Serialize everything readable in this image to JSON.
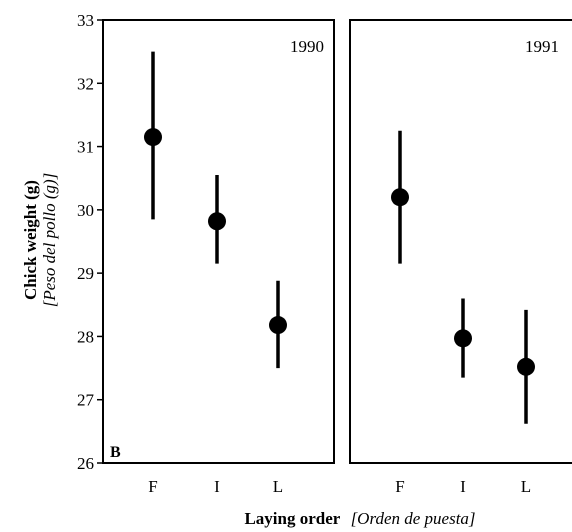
{
  "chart_data": {
    "type": "scatter",
    "panel_letter": "B",
    "ylabel": "Chick weight (g)",
    "ylabel_translation": "[Peso del pollo (g)]",
    "xlabel": "Laying order",
    "xlabel_translation": "[Orden de puesta]",
    "ylim": [
      26,
      33
    ],
    "y_ticks": [
      26,
      27,
      28,
      29,
      30,
      31,
      32,
      33
    ],
    "categories": [
      "F",
      "I",
      "L"
    ],
    "panels": [
      {
        "title": "1990",
        "points": [
          {
            "x": "F",
            "y": 31.15,
            "low": 29.85,
            "high": 32.5
          },
          {
            "x": "I",
            "y": 29.82,
            "low": 29.15,
            "high": 30.55
          },
          {
            "x": "L",
            "y": 28.18,
            "low": 27.5,
            "high": 28.88
          }
        ]
      },
      {
        "title": "1991",
        "points": [
          {
            "x": "F",
            "y": 30.2,
            "low": 29.15,
            "high": 31.25
          },
          {
            "x": "I",
            "y": 27.97,
            "low": 27.35,
            "high": 28.6
          },
          {
            "x": "L",
            "y": 27.52,
            "low": 26.62,
            "high": 28.42
          }
        ]
      }
    ]
  }
}
